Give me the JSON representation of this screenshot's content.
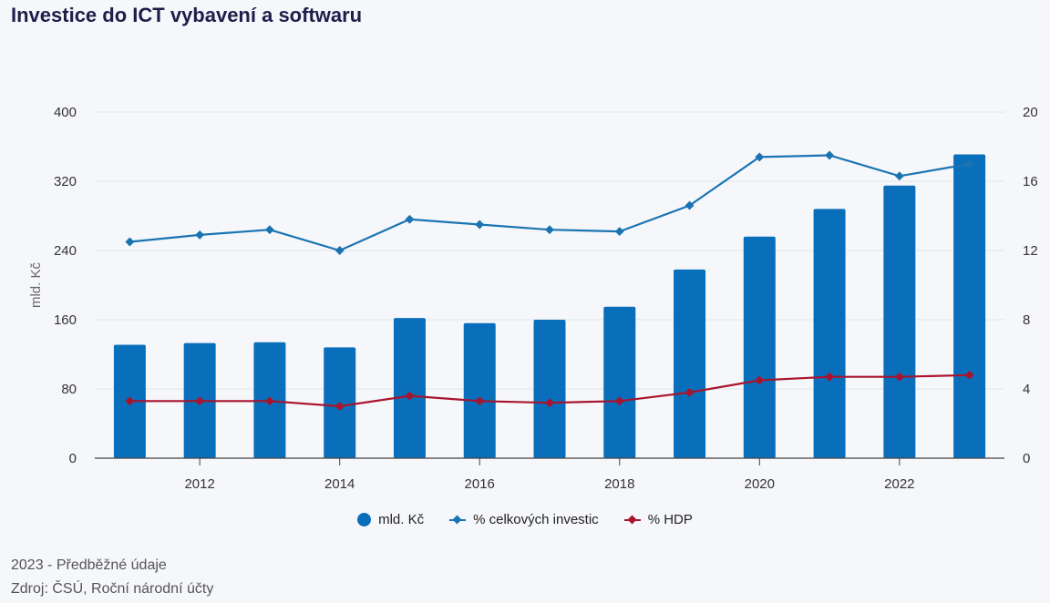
{
  "header": {
    "title": "Investice do ICT vybavení a softwaru"
  },
  "chart_data": {
    "type": "bar+line",
    "x": [
      2011,
      2012,
      2013,
      2014,
      2015,
      2016,
      2017,
      2018,
      2019,
      2020,
      2021,
      2022,
      2023
    ],
    "x_tick_labels": [
      "2012",
      "2014",
      "2016",
      "2018",
      "2020",
      "2022"
    ],
    "x_tick_values": [
      2012,
      2014,
      2016,
      2018,
      2020,
      2022
    ],
    "series": [
      {
        "name": "mld. Kč",
        "type": "bar",
        "axis": "left",
        "color": "#0a6fba",
        "values": [
          131,
          133,
          134,
          128,
          162,
          156,
          160,
          175,
          218,
          256,
          288,
          315,
          351
        ]
      },
      {
        "name": "% celkových investic",
        "type": "line",
        "axis": "right",
        "color": "#1a74b2",
        "values": [
          12.5,
          12.9,
          13.2,
          12.0,
          13.8,
          13.5,
          13.2,
          13.1,
          14.6,
          17.4,
          17.5,
          16.3,
          17.0
        ]
      },
      {
        "name": "% HDP",
        "type": "line",
        "axis": "right",
        "color": "#a8142d",
        "values": [
          3.3,
          3.3,
          3.3,
          3.0,
          3.6,
          3.3,
          3.2,
          3.3,
          3.8,
          4.5,
          4.7,
          4.7,
          4.8
        ]
      }
    ],
    "ylabel": "mld. Kč",
    "ylim": [
      0,
      400
    ],
    "y_ticks": [
      0,
      80,
      160,
      240,
      320,
      400
    ],
    "y2lim": [
      0,
      20
    ],
    "y2_ticks": [
      0,
      4,
      8,
      12,
      16,
      20
    ],
    "grid": true,
    "legend_position": "bottom"
  },
  "legend": {
    "items": [
      "mld. Kč",
      "% celkových investic",
      "% HDP"
    ]
  },
  "footer": {
    "note": "2023 - Předběžné údaje",
    "source": "Zdroj: ČSÚ, Roční národní účty"
  }
}
